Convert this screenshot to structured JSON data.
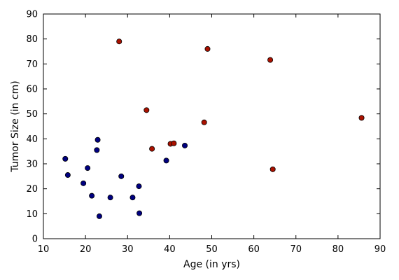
{
  "chart_data": {
    "type": "scatter",
    "title": "",
    "xlabel": "Age (in yrs)",
    "ylabel": "Tumor Size (in cm)",
    "xlim": [
      10,
      90
    ],
    "ylim": [
      0,
      90
    ],
    "xticks": [
      10,
      20,
      30,
      40,
      50,
      60,
      70,
      80,
      90
    ],
    "yticks": [
      0,
      10,
      20,
      30,
      40,
      50,
      60,
      70,
      80,
      90
    ],
    "grid": false,
    "series": [
      {
        "color": "#000080",
        "points": [
          [
            15.2,
            32.0
          ],
          [
            15.8,
            25.5
          ],
          [
            19.5,
            22.2
          ],
          [
            20.5,
            28.3
          ],
          [
            21.5,
            17.2
          ],
          [
            22.7,
            35.5
          ],
          [
            22.9,
            39.6
          ],
          [
            23.3,
            9.0
          ],
          [
            25.9,
            16.5
          ],
          [
            28.5,
            25.0
          ],
          [
            31.2,
            16.5
          ],
          [
            32.7,
            21.0
          ],
          [
            32.8,
            10.2
          ],
          [
            39.2,
            31.3
          ],
          [
            43.6,
            37.3
          ]
        ]
      },
      {
        "color": "#aa1100",
        "points": [
          [
            28.0,
            79.0
          ],
          [
            34.5,
            51.5
          ],
          [
            35.8,
            36.0
          ],
          [
            40.2,
            38.0
          ],
          [
            41.0,
            38.2
          ],
          [
            48.2,
            46.6
          ],
          [
            49.0,
            76.0
          ],
          [
            63.9,
            71.6
          ],
          [
            64.5,
            27.8
          ],
          [
            85.6,
            48.4
          ]
        ]
      }
    ]
  }
}
